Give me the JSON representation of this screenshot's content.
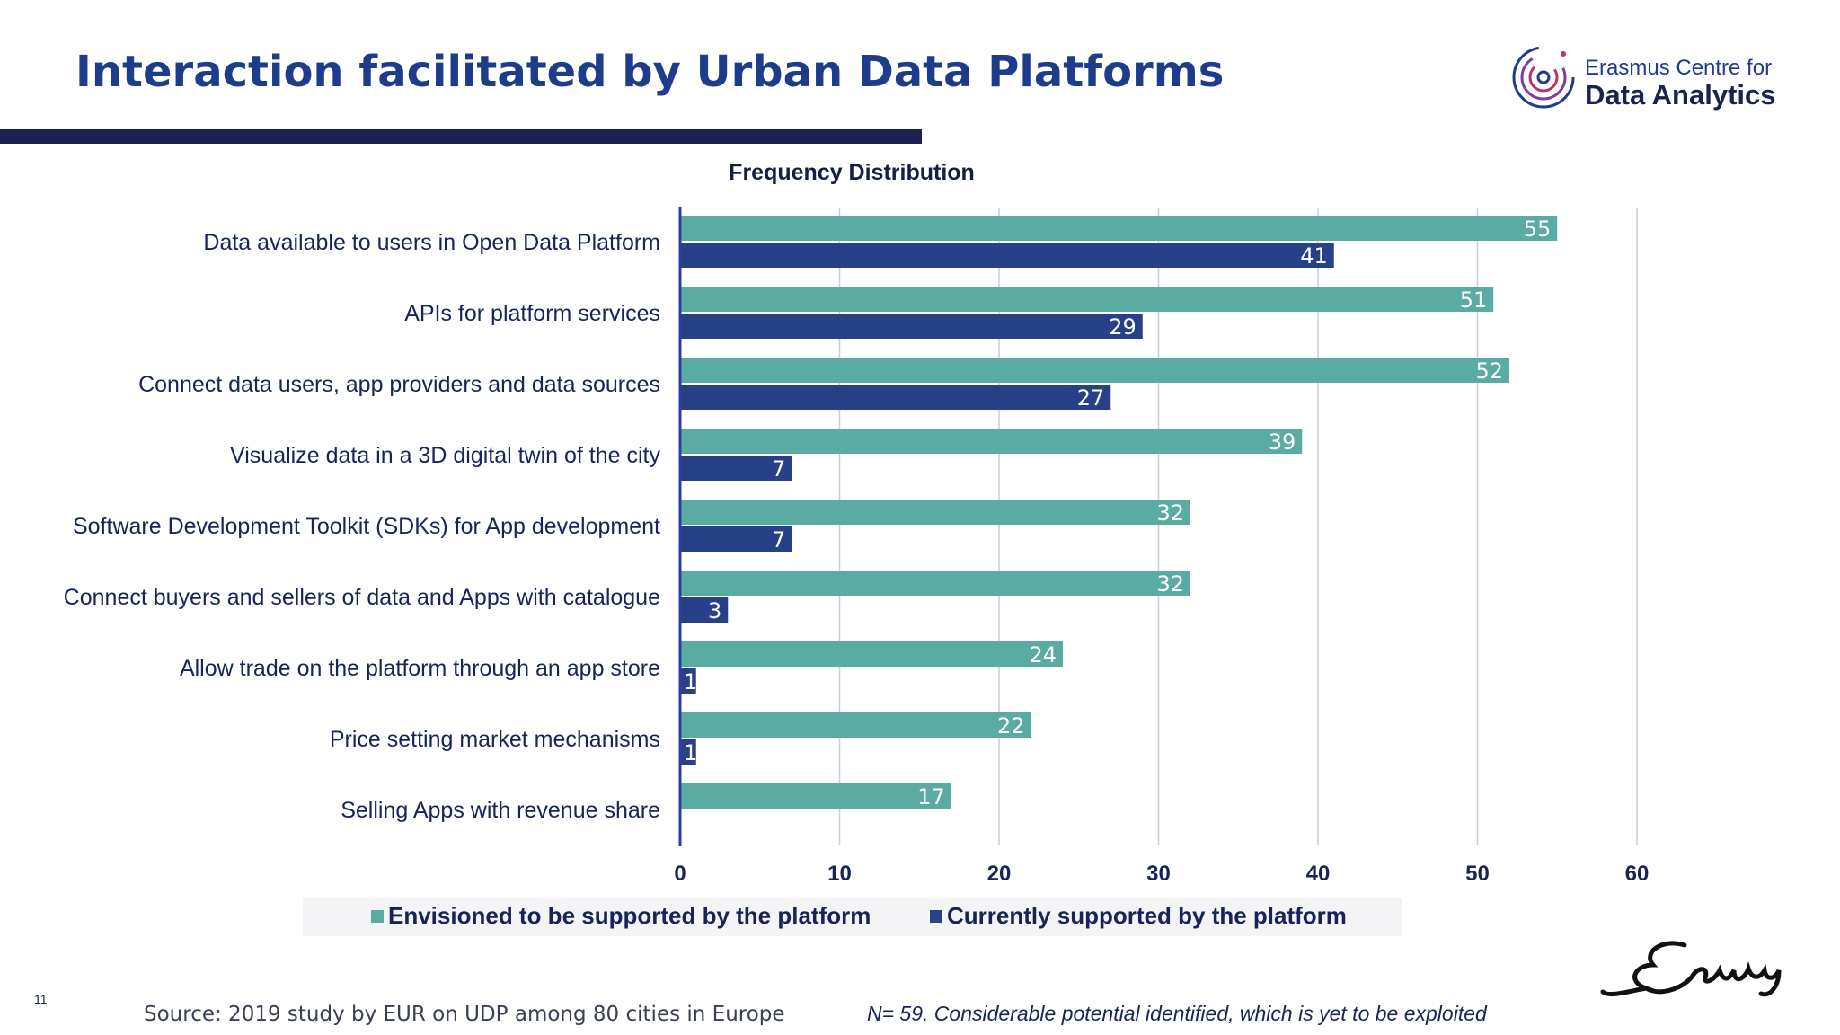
{
  "page": {
    "title": "Interaction facilitated by Urban Data Platforms",
    "page_number": "11",
    "source": "Source: 2019 study by EUR on UDP among 80 cities in Europe",
    "note": "N= 59. Considerable potential identified, which is yet to be exploited"
  },
  "logo": {
    "line1": "Erasmus Centre for",
    "line2": "Data Analytics"
  },
  "colors": {
    "title": "#1e3c8c",
    "title_bar": "#1b2150",
    "envisioned": "#5aaba1",
    "current": "#284088",
    "axis": "#2b3fa0",
    "grid": "#c8cede"
  },
  "chart_data": {
    "type": "bar",
    "orientation": "horizontal",
    "title": "Frequency Distribution",
    "categories": [
      "Data available to users in Open Data Platform",
      "APIs for platform services",
      "Connect data users, app providers and data sources",
      "Visualize data in a 3D digital twin of the city",
      "Software Development Toolkit (SDKs) for App development",
      "Connect buyers and sellers of data and Apps with catalogue",
      "Allow trade on the platform through an app store",
      "Price setting market mechanisms",
      "Selling Apps with revenue share"
    ],
    "series": [
      {
        "name": "Envisioned to be supported by the platform",
        "values": [
          55,
          51,
          52,
          39,
          32,
          32,
          24,
          22,
          17
        ]
      },
      {
        "name": "Currently supported by the platform",
        "values": [
          41,
          29,
          27,
          7,
          7,
          3,
          1,
          1,
          0
        ]
      }
    ],
    "xlim": [
      0,
      60
    ],
    "xticks": [
      0,
      10,
      20,
      30,
      40,
      50,
      60
    ],
    "grid": true,
    "legend_position": "bottom"
  }
}
